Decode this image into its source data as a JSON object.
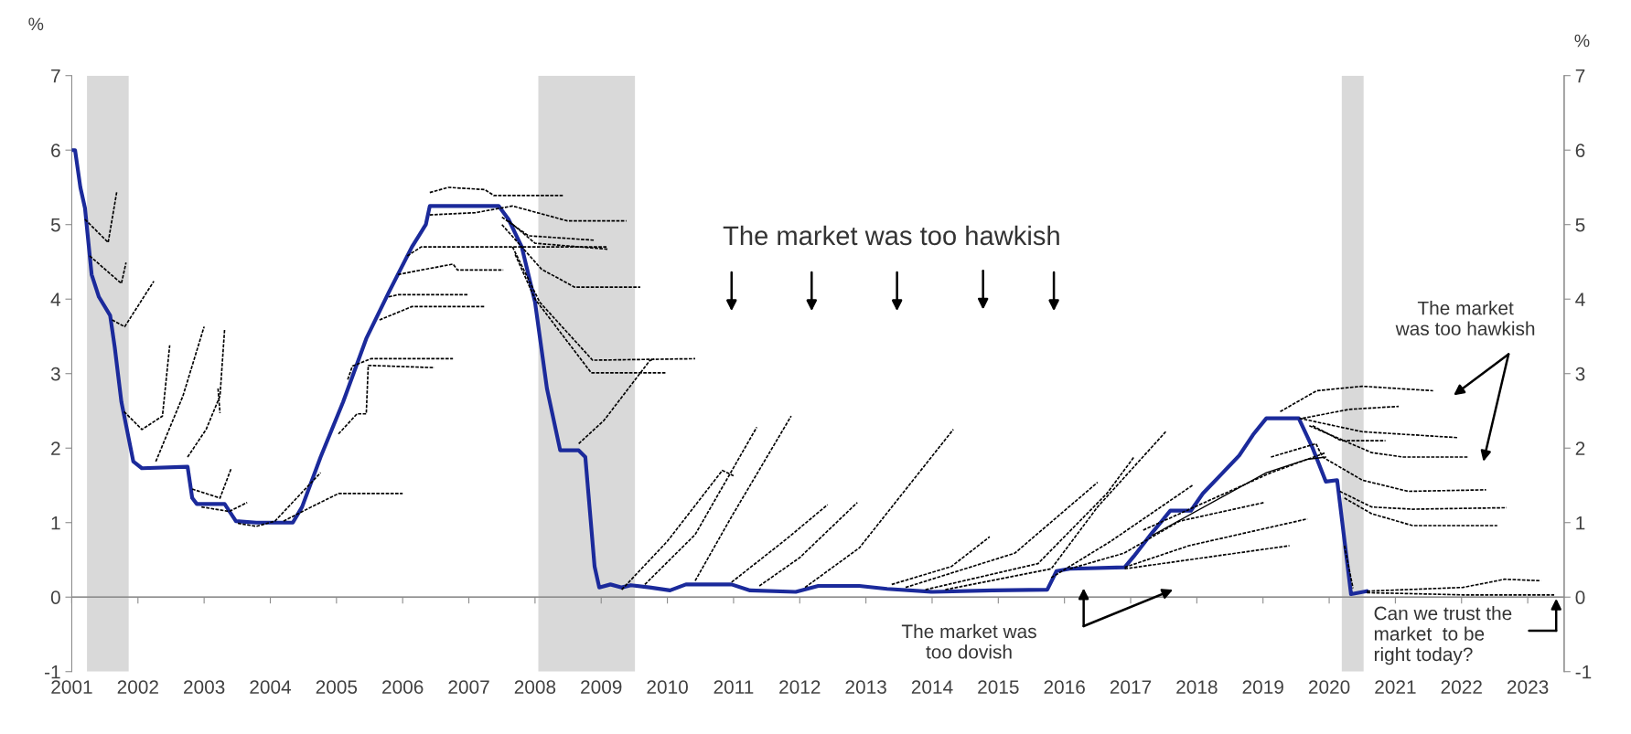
{
  "chart_data": {
    "type": "line",
    "ylabel": "%",
    "y2label": "%",
    "xlim": [
      2001,
      2023.55
    ],
    "xticks": [
      2001,
      2002,
      2003,
      2004,
      2005,
      2006,
      2007,
      2008,
      2009,
      2010,
      2011,
      2012,
      2013,
      2014,
      2015,
      2016,
      2017,
      2018,
      2019,
      2020,
      2021,
      2022,
      2023
    ],
    "ylim": [
      -1,
      7
    ],
    "yticks": [
      -1,
      0,
      1,
      2,
      3,
      4,
      5,
      6,
      7
    ],
    "y2lim": [
      -1,
      7
    ],
    "y2ticks": [
      -1,
      0,
      1,
      2,
      3,
      4,
      5,
      6,
      7
    ],
    "grid": false,
    "ref_lines": [
      {
        "axis": "y",
        "value": 0,
        "color": "#8c8c8c"
      }
    ],
    "legend": false,
    "marker": "none",
    "bands": [
      {
        "axis": "x",
        "from": 2001.23,
        "to": 2001.86,
        "color": "#d9d9d9"
      },
      {
        "axis": "x",
        "from": 2008.05,
        "to": 2009.51,
        "color": "#d9d9d9"
      },
      {
        "axis": "x",
        "from": 2020.19,
        "to": 2020.52,
        "color": "#d9d9d9"
      }
    ],
    "annotations": [
      "The market was too hawkish",
      "The market was\ntoo dovish",
      "The market\nwas too hawkish",
      "Can we trust the\nmarket  to be\nright today?"
    ],
    "series": [
      {
        "color": "#1b2a9b",
        "line_style": "solid",
        "x": [
          2001.0,
          2001.05,
          2001.13,
          2001.2,
          2001.3,
          2001.41,
          2001.58,
          2001.65,
          2001.75,
          2001.93,
          2002.06,
          2002.75,
          2002.82,
          2002.89,
          2003.31,
          2003.48,
          2003.79,
          2004.34,
          2004.48,
          2004.76,
          2005.1,
          2005.45,
          2005.79,
          2006.14,
          2006.35,
          2006.41,
          2007.45,
          2007.6,
          2007.8,
          2008.0,
          2008.18,
          2008.38,
          2008.66,
          2008.76,
          2008.9,
          2008.97,
          2009.14,
          2009.31,
          2009.45,
          2009.73,
          2010.04,
          2010.28,
          2010.97,
          2011.25,
          2011.94,
          2012.28,
          2012.9,
          2013.32,
          2014.01,
          2014.91,
          2015.74,
          2015.88,
          2016.08,
          2016.91,
          2017.05,
          2017.33,
          2017.6,
          2017.91,
          2018.09,
          2018.36,
          2018.64,
          2018.85,
          2019.05,
          2019.54,
          2019.75,
          2019.95,
          2020.12,
          2020.33,
          2020.57
        ],
        "values": [
          6.0,
          6.0,
          5.5,
          5.22,
          4.33,
          4.03,
          3.78,
          3.35,
          2.62,
          1.82,
          1.73,
          1.75,
          1.33,
          1.25,
          1.25,
          1.02,
          1.0,
          1.0,
          1.21,
          1.88,
          2.62,
          3.47,
          4.09,
          4.7,
          5.0,
          5.25,
          5.25,
          5.07,
          4.7,
          3.96,
          2.8,
          1.97,
          1.97,
          1.88,
          0.41,
          0.13,
          0.17,
          0.13,
          0.16,
          0.13,
          0.09,
          0.17,
          0.17,
          0.09,
          0.07,
          0.15,
          0.15,
          0.11,
          0.07,
          0.09,
          0.1,
          0.35,
          0.38,
          0.4,
          0.55,
          0.87,
          1.16,
          1.16,
          1.39,
          1.64,
          1.9,
          2.18,
          2.4,
          2.4,
          2.0,
          1.55,
          1.57,
          0.04,
          0.08
        ]
      },
      {
        "color": "#000000",
        "line_style": "dashed",
        "x": [
          2001.2,
          2001.55,
          2001.68
        ],
        "values": [
          5.07,
          4.76,
          5.44
        ]
      },
      {
        "color": "#000000",
        "line_style": "dashed",
        "x": [
          2001.27,
          2001.75,
          2001.82
        ],
        "values": [
          4.58,
          4.21,
          4.49
        ]
      },
      {
        "color": "#000000",
        "line_style": "dashed",
        "x": [
          2001.61,
          2001.8,
          2002.24
        ],
        "values": [
          3.72,
          3.63,
          4.24
        ]
      },
      {
        "color": "#000000",
        "line_style": "dashed",
        "x": [
          2001.79,
          2002.06,
          2002.37,
          2002.48
        ],
        "values": [
          2.49,
          2.25,
          2.43,
          3.38
        ]
      },
      {
        "color": "#000000",
        "line_style": "dashed",
        "x": [
          2002.27,
          2002.68,
          2003.0
        ],
        "values": [
          1.82,
          2.7,
          3.63
        ]
      },
      {
        "color": "#000000",
        "line_style": "dashed",
        "x": [
          2002.75,
          2003.03,
          2003.24,
          2003.31
        ],
        "values": [
          1.88,
          2.25,
          2.7,
          3.6
        ]
      },
      {
        "color": "#000000",
        "line_style": "dashed",
        "x": [
          2003.21,
          2003.24
        ],
        "values": [
          2.8,
          2.47
        ]
      },
      {
        "color": "#000000",
        "line_style": "dashed",
        "x": [
          2002.82,
          2003.24,
          2003.41
        ],
        "values": [
          1.45,
          1.33,
          1.73
        ]
      },
      {
        "color": "#000000",
        "line_style": "dashed",
        "x": [
          2002.96,
          2003.38,
          2003.65
        ],
        "values": [
          1.21,
          1.15,
          1.27
        ]
      },
      {
        "color": "#000000",
        "line_style": "dashed",
        "x": [
          2003.51,
          2003.79,
          2004.07,
          2004.76
        ],
        "values": [
          0.99,
          0.95,
          1.02,
          1.67
        ]
      },
      {
        "color": "#000000",
        "line_style": "dashed",
        "x": [
          2004.2,
          2004.62,
          2005.03,
          2006.0
        ],
        "values": [
          1.02,
          1.21,
          1.39,
          1.39
        ]
      },
      {
        "color": "#000000",
        "line_style": "dashed",
        "x": [
          2005.03,
          2005.31,
          2005.45,
          2005.48,
          2006.48
        ],
        "values": [
          2.19,
          2.46,
          2.46,
          3.11,
          3.08
        ]
      },
      {
        "color": "#000000",
        "line_style": "dashed",
        "x": [
          2005.17,
          2005.24,
          2005.52,
          2006.76
        ],
        "values": [
          2.92,
          3.1,
          3.2,
          3.2
        ]
      },
      {
        "color": "#000000",
        "line_style": "dashed",
        "x": [
          2005.65,
          2006.14,
          2007.24
        ],
        "values": [
          3.72,
          3.9,
          3.9
        ]
      },
      {
        "color": "#000000",
        "line_style": "dashed",
        "x": [
          2005.79,
          2005.93,
          2007.0
        ],
        "values": [
          4.03,
          4.06,
          4.06
        ]
      },
      {
        "color": "#000000",
        "line_style": "dashed",
        "x": [
          2005.93,
          2006.28,
          2006.76,
          2006.83,
          2007.52
        ],
        "values": [
          4.33,
          4.39,
          4.47,
          4.39,
          4.39
        ]
      },
      {
        "color": "#000000",
        "line_style": "dashed",
        "x": [
          2006.07,
          2006.28,
          2009.1
        ],
        "values": [
          4.58,
          4.7,
          4.7
        ]
      },
      {
        "color": "#000000",
        "line_style": "dashed",
        "x": [
          2006.41,
          2006.69,
          2007.24,
          2007.38,
          2008.42
        ],
        "values": [
          5.43,
          5.5,
          5.47,
          5.39,
          5.39
        ]
      },
      {
        "color": "#000000",
        "line_style": "dashed",
        "x": [
          2006.41,
          2007.1,
          2007.66,
          2008.49,
          2009.38
        ],
        "values": [
          5.13,
          5.16,
          5.25,
          5.05,
          5.05
        ]
      },
      {
        "color": "#000000",
        "line_style": "dashed",
        "x": [
          2007.5,
          2007.9,
          2008.9
        ],
        "values": [
          5.1,
          4.85,
          4.79
        ]
      },
      {
        "color": "#000000",
        "line_style": "dashed",
        "x": [
          2007.6,
          2008.0,
          2009.1
        ],
        "values": [
          5.05,
          4.75,
          4.67
        ]
      },
      {
        "color": "#000000",
        "line_style": "dashed",
        "x": [
          2007.5,
          2008.1,
          2008.6,
          2009.59
        ],
        "values": [
          5.0,
          4.4,
          4.16,
          4.16
        ]
      },
      {
        "color": "#000000",
        "line_style": "dashed",
        "x": [
          2007.66,
          2008.07,
          2008.87,
          2010.42
        ],
        "values": [
          4.7,
          3.96,
          3.18,
          3.2
        ]
      },
      {
        "color": "#000000",
        "line_style": "dashed",
        "x": [
          2007.7,
          2008.0,
          2008.85,
          2009.97
        ],
        "values": [
          4.6,
          4.0,
          3.01,
          3.01
        ]
      },
      {
        "color": "#000000",
        "line_style": "dashed",
        "x": [
          2008.66,
          2009.04,
          2009.73,
          2009.8
        ],
        "values": [
          2.06,
          2.37,
          3.17,
          3.2
        ]
      },
      {
        "color": "#000000",
        "line_style": "dashed",
        "x": [
          2009.31,
          2010.0,
          2010.83,
          2011.0
        ],
        "values": [
          0.1,
          0.75,
          1.7,
          1.63
        ]
      },
      {
        "color": "#000000",
        "line_style": "dashed",
        "x": [
          2009.66,
          2010.42,
          2011.35
        ],
        "values": [
          0.17,
          0.84,
          2.28
        ]
      },
      {
        "color": "#000000",
        "line_style": "dashed",
        "x": [
          2010.42,
          2010.97,
          2011.87
        ],
        "values": [
          0.22,
          1.08,
          2.43
        ]
      },
      {
        "color": "#000000",
        "line_style": "dashed",
        "x": [
          2010.97,
          2011.8,
          2012.42
        ],
        "values": [
          0.2,
          0.78,
          1.24
        ]
      },
      {
        "color": "#000000",
        "line_style": "dashed",
        "x": [
          2011.39,
          2012.0,
          2012.87
        ],
        "values": [
          0.15,
          0.53,
          1.27
        ]
      },
      {
        "color": "#000000",
        "line_style": "dashed",
        "x": [
          2012.08,
          2012.9,
          2014.32
        ],
        "values": [
          0.13,
          0.66,
          2.25
        ]
      },
      {
        "color": "#000000",
        "line_style": "dashed",
        "x": [
          2013.39,
          2014.29,
          2014.87
        ],
        "values": [
          0.17,
          0.41,
          0.81
        ]
      },
      {
        "color": "#000000",
        "line_style": "dashed",
        "x": [
          2013.6,
          2015.25,
          2016.5
        ],
        "values": [
          0.13,
          0.59,
          1.54
        ]
      },
      {
        "color": "#000000",
        "line_style": "dashed",
        "x": [
          2013.9,
          2015.6,
          2016.64,
          2017.05
        ],
        "values": [
          0.1,
          0.45,
          1.39,
          1.88
        ]
      },
      {
        "color": "#000000",
        "line_style": "dashed",
        "x": [
          2014.2,
          2015.8,
          2016.5,
          2017.53
        ],
        "values": [
          0.1,
          0.38,
          1.21,
          2.22
        ]
      },
      {
        "color": "#000000",
        "line_style": "dashed",
        "x": [
          2015.8,
          2016.7,
          2017.95
        ],
        "values": [
          0.26,
          0.75,
          1.51
        ]
      },
      {
        "color": "#000000",
        "line_style": "dashed",
        "x": [
          2016.08,
          2016.9,
          2017.74,
          2019.02
        ],
        "values": [
          0.38,
          0.59,
          1.02,
          1.27
        ]
      },
      {
        "color": "#000000",
        "line_style": "dashed",
        "x": [
          2016.91,
          2017.88,
          2019.67
        ],
        "values": [
          0.4,
          0.69,
          1.05
        ]
      },
      {
        "color": "#000000",
        "line_style": "dashed",
        "x": [
          2016.91,
          2019.4
        ],
        "values": [
          0.38,
          0.69
        ]
      },
      {
        "color": "#000000",
        "line_style": "dashed",
        "x": [
          2017.19,
          2019.12,
          2019.95
        ],
        "values": [
          0.9,
          1.67,
          1.94
        ]
      },
      {
        "color": "#000000",
        "line_style": "solid",
        "x": [
          2017.33,
          2019.05,
          2019.67,
          2019.95
        ],
        "values": [
          0.83,
          1.67,
          1.85,
          1.88
        ]
      },
      {
        "color": "#000000",
        "line_style": "dashed",
        "x": [
          2019.26,
          2019.81,
          2020.5,
          2021.57
        ],
        "values": [
          2.49,
          2.77,
          2.83,
          2.77
        ]
      },
      {
        "color": "#000000",
        "line_style": "dashed",
        "x": [
          2019.6,
          2020.3,
          2021.05
        ],
        "values": [
          2.4,
          2.52,
          2.56
        ]
      },
      {
        "color": "#000000",
        "line_style": "dashed",
        "x": [
          2019.55,
          2020.5,
          2021.95
        ],
        "values": [
          2.4,
          2.22,
          2.14
        ]
      },
      {
        "color": "#000000",
        "line_style": "dashed",
        "x": [
          2019.75,
          2020.18,
          2020.85
        ],
        "values": [
          2.3,
          2.1,
          2.1
        ]
      },
      {
        "color": "#000000",
        "line_style": "dashed",
        "x": [
          2019.7,
          2020.64,
          2021.12,
          2022.09
        ],
        "values": [
          2.3,
          1.94,
          1.88,
          1.88
        ]
      },
      {
        "color": "#000000",
        "line_style": "dashed",
        "x": [
          2019.12,
          2019.8,
          2019.9,
          2020.5,
          2021.19,
          2022.37
        ],
        "values": [
          1.88,
          2.06,
          1.88,
          1.57,
          1.42,
          1.44
        ]
      },
      {
        "color": "#000000",
        "line_style": "dashed",
        "x": [
          2020.16,
          2020.64,
          2021.26,
          2022.68
        ],
        "values": [
          1.42,
          1.21,
          1.18,
          1.2
        ]
      },
      {
        "color": "#000000",
        "line_style": "dashed",
        "x": [
          2020.23,
          2020.64,
          2021.26,
          2022.54
        ],
        "values": [
          1.33,
          1.12,
          0.96,
          0.96
        ]
      },
      {
        "color": "#000000",
        "line_style": "dashed",
        "x": [
          2020.23,
          2020.36
        ],
        "values": [
          0.69,
          0.12
        ]
      },
      {
        "color": "#000000",
        "line_style": "dashed",
        "x": [
          2020.57,
          2022.02,
          2022.37,
          2022.65,
          2023.2
        ],
        "values": [
          0.08,
          0.13,
          0.19,
          0.24,
          0.22
        ]
      },
      {
        "color": "#000000",
        "line_style": "dashed",
        "x": [
          2020.57,
          2022.02,
          2023.4
        ],
        "values": [
          0.06,
          0.03,
          0.03
        ]
      }
    ]
  }
}
